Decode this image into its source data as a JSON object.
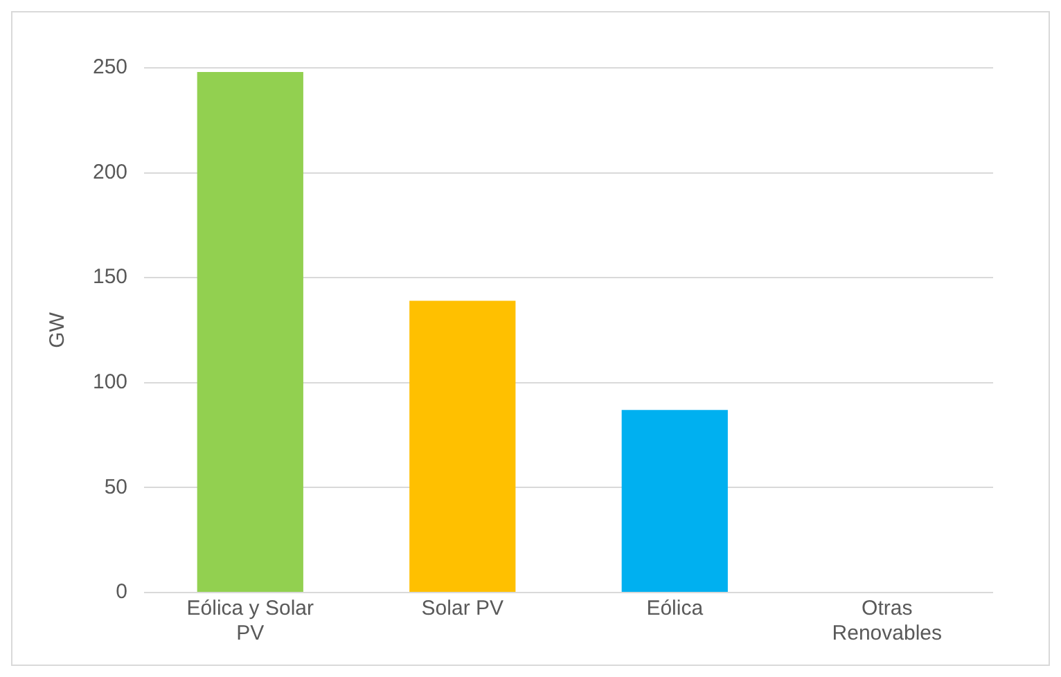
{
  "chart_data": {
    "type": "bar",
    "ylabel": "GW",
    "categories": [
      "Eólica y Solar PV",
      "Solar PV",
      "Eólica",
      "Otras Renovables"
    ],
    "values": [
      248,
      139,
      87,
      0
    ],
    "colors": [
      "#92d050",
      "#ffc000",
      "#00b0f0",
      "#a5a5a5"
    ],
    "ylim": [
      0,
      250
    ],
    "yticks": [
      0,
      50,
      100,
      150,
      200,
      250
    ],
    "grid": "y",
    "legend": false
  }
}
